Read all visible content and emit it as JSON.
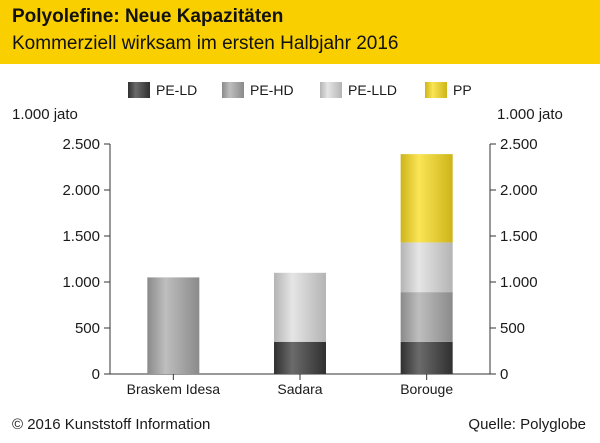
{
  "header": {
    "title": "Polyolefine: Neue Kapazitäten",
    "subtitle": "Kommerziell wirksam im ersten Halbjahr 2016"
  },
  "footer": {
    "copyright": "© 2016 Kunststoff Information",
    "source": "Quelle: Polyglobe"
  },
  "colors": {
    "header_bg": "#f9cf00",
    "PE-LD": "#3a3a3a",
    "PE-HD": "#a8a8a8",
    "PE-LLD": "#dcdcdc",
    "PP": "#fadc1e"
  },
  "chart_data": {
    "type": "bar",
    "stacked": true,
    "unit_label": "1.000 jato",
    "categories": [
      "Braskem Idesa",
      "Sadara",
      "Borouge"
    ],
    "series": [
      {
        "name": "PE-LD",
        "values": [
          0,
          350,
          350
        ]
      },
      {
        "name": "PE-HD",
        "values": [
          1050,
          0,
          540
        ]
      },
      {
        "name": "PE-LLD",
        "values": [
          0,
          750,
          540
        ]
      },
      {
        "name": "PP",
        "values": [
          0,
          0,
          960
        ]
      }
    ],
    "ylim": [
      0,
      2500
    ],
    "yticks": [
      0,
      500,
      1000,
      1500,
      2000,
      2500
    ],
    "ytick_labels": [
      "0",
      "500",
      "1.000",
      "1.500",
      "2.000",
      "2.500"
    ],
    "legend_position": "top",
    "grid": false,
    "dual_axis": true
  }
}
